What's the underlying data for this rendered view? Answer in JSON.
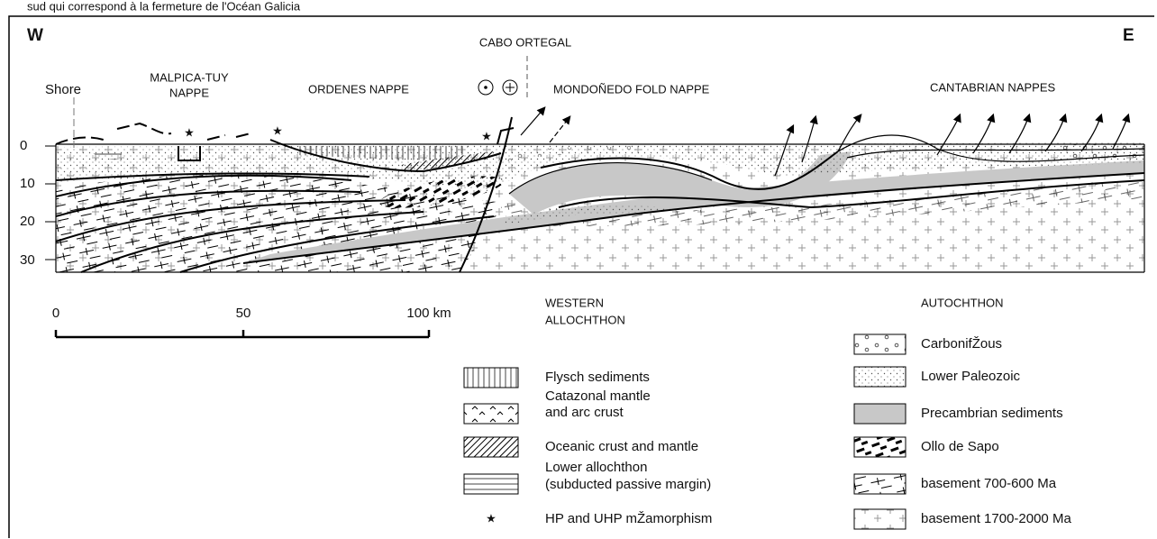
{
  "caption": "sud qui correspond à la fermeture de l'Océan Galicia",
  "section": {
    "west": "W",
    "east": "E",
    "cabo_ortegal": "CABO ORTEGAL",
    "shore": "Shore",
    "malpica_tuy": [
      "MALPICA-TUY",
      "NAPPE"
    ],
    "ordenes": "ORDENES NAPPE",
    "mondonedo": "MONDOÑEDO FOLD NAPPE",
    "cantabrian": "CANTABRIAN  NAPPES",
    "depth_labels": [
      "0",
      "10",
      "20",
      "30"
    ]
  },
  "scale": {
    "labels": [
      "0",
      "50",
      "100 km"
    ]
  },
  "legend_western": {
    "title": [
      "WESTERN",
      "ALLOCHTHON"
    ],
    "items": [
      [
        "Flysch sediments"
      ],
      [
        "Catazonal mantle",
        "and arc crust"
      ],
      [
        "Oceanic crust and mantle"
      ],
      [
        "Lower allochthon",
        "(subducted passive margin)"
      ],
      [
        "HP and UHP mŽamorphism"
      ]
    ]
  },
  "legend_autochthon": {
    "title": "AUTOCHTHON",
    "items": [
      "CarbonifŽous",
      "Lower Paleozoic",
      "Precambrian sediments",
      "Ollo de Sapo",
      "basement 700-600 Ma",
      "basement 1700-2000 Ma"
    ]
  }
}
